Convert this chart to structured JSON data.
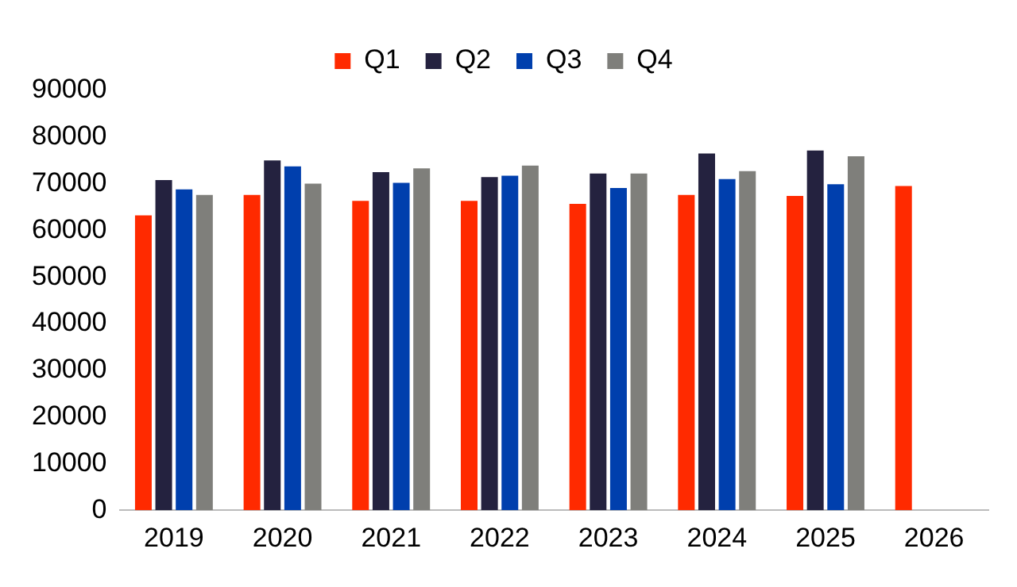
{
  "chart_data": {
    "type": "bar",
    "categories": [
      "2019",
      "2020",
      "2021",
      "2022",
      "2023",
      "2024",
      "2025",
      "2026"
    ],
    "series": [
      {
        "name": "Q1",
        "color": "#ff2a00",
        "values": [
          63200,
          67600,
          66300,
          66300,
          65700,
          67600,
          67400,
          69500
        ]
      },
      {
        "name": "Q2",
        "color": "#24223f",
        "values": [
          70800,
          75000,
          72500,
          71400,
          72200,
          76500,
          77100,
          null
        ]
      },
      {
        "name": "Q3",
        "color": "#003fad",
        "values": [
          68800,
          73700,
          70200,
          71700,
          69100,
          71000,
          69900,
          null
        ]
      },
      {
        "name": "Q4",
        "color": "#7f7f7b",
        "values": [
          67600,
          70000,
          73300,
          73900,
          72200,
          72700,
          75900,
          null
        ]
      }
    ],
    "ylim": [
      0,
      90000
    ],
    "yticks": [
      0,
      10000,
      20000,
      30000,
      40000,
      50000,
      60000,
      70000,
      80000,
      90000
    ],
    "grid": false,
    "legend": "top"
  }
}
